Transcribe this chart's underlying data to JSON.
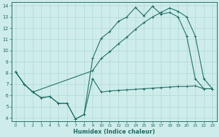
{
  "xlabel": "Humidex (Indice chaleur)",
  "background_color": "#ceecea",
  "line_color": "#1e6b63",
  "grid_color": "#aed8d4",
  "xlim": [
    -0.5,
    23.5
  ],
  "ylim": [
    3.7,
    14.3
  ],
  "yticks": [
    4,
    5,
    6,
    7,
    8,
    9,
    10,
    11,
    12,
    13,
    14
  ],
  "xticks": [
    0,
    1,
    2,
    3,
    4,
    5,
    6,
    7,
    8,
    9,
    10,
    11,
    12,
    13,
    14,
    15,
    16,
    17,
    18,
    19,
    20,
    21,
    22,
    23
  ],
  "line1_x": [
    0,
    1,
    2,
    3,
    4,
    5,
    6,
    7,
    8,
    9,
    10,
    11,
    12,
    13,
    14,
    15,
    16,
    17,
    18,
    19,
    20,
    21,
    22,
    23
  ],
  "line1_y": [
    8.1,
    7.0,
    6.3,
    5.8,
    5.9,
    5.3,
    5.3,
    3.9,
    4.3,
    7.5,
    6.3,
    6.4,
    6.45,
    6.5,
    6.55,
    6.6,
    6.65,
    6.7,
    6.75,
    6.8,
    6.8,
    6.85,
    6.6,
    6.6
  ],
  "line2_x": [
    0,
    1,
    2,
    3,
    4,
    5,
    6,
    7,
    8,
    9,
    10,
    11,
    12,
    13,
    14,
    15,
    16,
    17,
    18,
    19,
    20,
    21,
    22,
    23
  ],
  "line2_y": [
    8.1,
    7.0,
    6.3,
    5.8,
    5.9,
    5.3,
    5.3,
    3.9,
    4.3,
    9.3,
    11.1,
    11.7,
    12.6,
    13.0,
    13.85,
    13.1,
    13.95,
    13.25,
    13.4,
    13.0,
    11.3,
    7.5,
    6.6,
    6.6
  ],
  "line3_x": [
    0,
    1,
    2,
    9,
    10,
    11,
    12,
    13,
    14,
    15,
    16,
    17,
    18,
    19,
    20,
    21,
    22,
    23
  ],
  "line3_y": [
    8.1,
    7.0,
    6.3,
    8.2,
    9.3,
    9.9,
    10.6,
    11.2,
    11.9,
    12.5,
    13.0,
    13.4,
    13.8,
    13.5,
    13.0,
    11.3,
    7.5,
    6.6
  ],
  "marker_size": 2.5,
  "line_width": 0.8
}
